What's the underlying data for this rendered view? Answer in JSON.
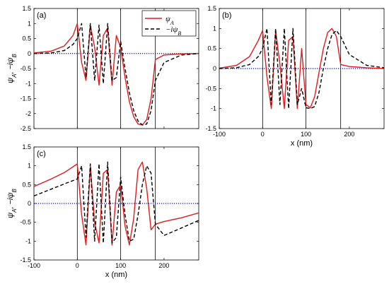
{
  "chart_data": [
    {
      "panel": "(a)",
      "type": "line",
      "ylabel": "ψ_A, −iψ_B",
      "xlabel": "",
      "xlim": [
        -100,
        280
      ],
      "ylim": [
        -2.5,
        1.5
      ],
      "xticks": [],
      "yticks": [
        "-2.5",
        "-2",
        "-1.5",
        "-1",
        "-0.5",
        "0",
        "0.5",
        "1",
        "1.5"
      ],
      "vlines": [
        0,
        100,
        180
      ],
      "zero_line": "blue dotted",
      "legend": {
        "position": "top-right",
        "entries": [
          "ψ_A",
          "−iψ_B"
        ]
      },
      "series": [
        {
          "name": "ψ_A",
          "color": "#e41a1c",
          "dash": "solid",
          "x": [
            -100,
            -60,
            -30,
            -10,
            0,
            10,
            20,
            30,
            40,
            50,
            60,
            70,
            80,
            90,
            100,
            110,
            120,
            130,
            140,
            150,
            160,
            170,
            180,
            200,
            240,
            280
          ],
          "y": [
            0.02,
            0.08,
            0.25,
            0.6,
            1.0,
            -0.3,
            -0.9,
            0.95,
            0.2,
            -1.05,
            0.6,
            0.85,
            -1.05,
            0.6,
            0.2,
            -0.8,
            -1.6,
            -2.1,
            -2.35,
            -2.38,
            -2.2,
            -1.5,
            -0.2,
            -0.05,
            -0.01,
            0.0
          ]
        },
        {
          "name": "−iψ_B",
          "color": "#000000",
          "dash": "dashed",
          "x": [
            -100,
            -60,
            -30,
            -10,
            0,
            10,
            20,
            30,
            40,
            50,
            60,
            70,
            80,
            90,
            100,
            110,
            120,
            130,
            140,
            150,
            160,
            170,
            180,
            200,
            240,
            280
          ],
          "y": [
            0.0,
            0.02,
            0.1,
            0.3,
            0.5,
            1.0,
            -0.8,
            1.0,
            -0.9,
            0.95,
            -1.0,
            1.0,
            -0.9,
            -0.8,
            0.4,
            -0.5,
            -1.3,
            -1.9,
            -2.25,
            -2.38,
            -2.35,
            -1.9,
            -0.9,
            -0.3,
            -0.05,
            0.0
          ]
        }
      ]
    },
    {
      "panel": "(b)",
      "type": "line",
      "ylabel": "",
      "xlabel": "x (nm)",
      "xlim": [
        -100,
        280
      ],
      "ylim": [
        -1.5,
        1.5
      ],
      "xticks": [
        "-100",
        "0",
        "100",
        "200"
      ],
      "yticks": [
        "-1.5",
        "-1",
        "-0.5",
        "0",
        "0.5",
        "1",
        "1.5"
      ],
      "vlines": [
        0,
        100,
        180
      ],
      "zero_line": "blue dotted",
      "series": [
        {
          "name": "ψ_A",
          "color": "#e41a1c",
          "dash": "solid",
          "x": [
            -100,
            -60,
            -30,
            -10,
            0,
            10,
            20,
            30,
            40,
            50,
            60,
            70,
            80,
            90,
            100,
            110,
            120,
            130,
            140,
            150,
            160,
            170,
            180,
            200,
            240,
            280
          ],
          "y": [
            0.01,
            0.08,
            0.3,
            0.7,
            0.95,
            -0.2,
            -1.0,
            0.95,
            0.1,
            -1.0,
            0.7,
            0.8,
            -1.0,
            0.5,
            -0.9,
            -0.98,
            -0.7,
            -0.1,
            0.5,
            0.9,
            1.0,
            0.8,
            0.1,
            0.05,
            0.02,
            0.0
          ]
        },
        {
          "name": "−iψ_B",
          "color": "#000000",
          "dash": "dashed",
          "x": [
            -100,
            -60,
            -30,
            -10,
            0,
            10,
            20,
            30,
            40,
            50,
            60,
            70,
            80,
            90,
            100,
            110,
            120,
            130,
            140,
            150,
            160,
            170,
            180,
            200,
            240,
            280
          ],
          "y": [
            0.0,
            0.02,
            0.1,
            0.3,
            0.5,
            1.0,
            -0.9,
            1.0,
            -0.9,
            1.0,
            -1.0,
            1.0,
            -0.9,
            -0.5,
            -0.98,
            -1.0,
            -0.95,
            -0.6,
            0.0,
            0.5,
            0.85,
            0.95,
            0.8,
            0.35,
            0.08,
            0.02
          ]
        }
      ]
    },
    {
      "panel": "(c)",
      "type": "line",
      "ylabel": "ψ_A, −iψ_B",
      "xlabel": "x (nm)",
      "xlim": [
        -100,
        280
      ],
      "ylim": [
        -1.5,
        1.5
      ],
      "xticks": [
        "-100",
        "0",
        "100",
        "200"
      ],
      "yticks": [
        "-1.5",
        "-1",
        "-0.5",
        "0",
        "0.5",
        "1",
        "1.5"
      ],
      "vlines": [
        0,
        100,
        180
      ],
      "zero_line": "blue dotted",
      "series": [
        {
          "name": "ψ_A",
          "color": "#e41a1c",
          "dash": "solid",
          "x": [
            -100,
            -60,
            -30,
            0,
            10,
            20,
            30,
            40,
            50,
            60,
            70,
            80,
            90,
            100,
            110,
            120,
            130,
            140,
            150,
            160,
            170,
            180,
            200,
            240,
            280
          ],
          "y": [
            0.45,
            0.65,
            0.82,
            1.05,
            -0.3,
            -1.1,
            1.0,
            -0.5,
            -1.05,
            0.8,
            0.9,
            -1.1,
            0.3,
            0.5,
            -0.6,
            -1.1,
            -0.4,
            0.9,
            1.1,
            0.4,
            -0.7,
            -0.55,
            -0.48,
            -0.38,
            -0.25
          ]
        },
        {
          "name": "−iψ_B",
          "color": "#000000",
          "dash": "dashed",
          "x": [
            -100,
            -60,
            -30,
            0,
            10,
            20,
            30,
            40,
            50,
            60,
            70,
            80,
            90,
            100,
            110,
            120,
            130,
            140,
            150,
            160,
            170,
            180,
            200,
            240,
            280
          ],
          "y": [
            0.2,
            0.38,
            0.52,
            0.65,
            1.0,
            -0.9,
            1.05,
            -1.0,
            1.05,
            -1.05,
            1.1,
            -1.05,
            -0.9,
            0.7,
            -0.3,
            -1.0,
            -0.95,
            -0.3,
            0.5,
            1.0,
            0.8,
            -0.55,
            -0.85,
            -0.65,
            -0.45
          ]
        }
      ]
    }
  ]
}
